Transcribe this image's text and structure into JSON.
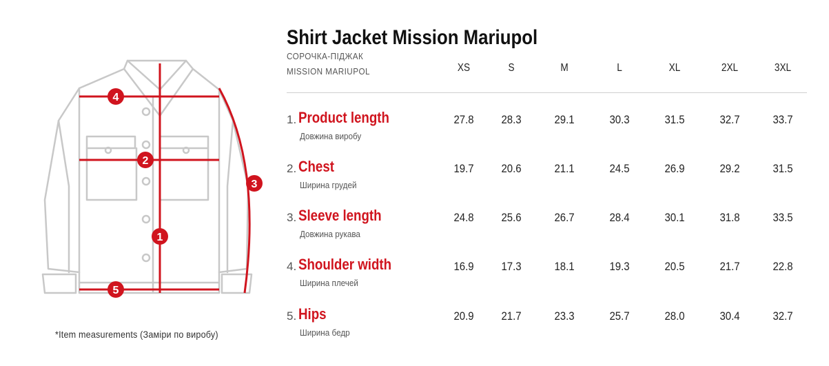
{
  "title": "Shirt Jacket Mission Mariupol",
  "subtitle_line1": "СОРОЧКА-ПІДЖАК",
  "subtitle_line2": "MISSION MARIUPOL",
  "footnote": "*Item measurements (Заміри по виробу)",
  "colors": {
    "accent": "#d0141e",
    "outline": "#c8c8c8"
  },
  "sizes": [
    "XS",
    "S",
    "M",
    "L",
    "XL",
    "2XL",
    "3XL"
  ],
  "rows": [
    {
      "num": "1.",
      "name": "Product length",
      "uk": "Довжина виробу",
      "values": [
        "27.8",
        "28.3",
        "29.1",
        "30.3",
        "31.5",
        "32.7",
        "33.7"
      ]
    },
    {
      "num": "2.",
      "name": "Chest",
      "uk": "Ширина грудей",
      "values": [
        "19.7",
        "20.6",
        "21.1",
        "24.5",
        "26.9",
        "29.2",
        "31.5"
      ]
    },
    {
      "num": "3.",
      "name": "Sleeve length",
      "uk": "Довжина рукава",
      "values": [
        "24.8",
        "25.6",
        "26.7",
        "28.4",
        "30.1",
        "31.8",
        "33.5"
      ]
    },
    {
      "num": "4.",
      "name": "Shoulder width",
      "uk": "Ширина плечей",
      "values": [
        "16.9",
        "17.3",
        "18.1",
        "19.3",
        "20.5",
        "21.7",
        "22.8"
      ]
    },
    {
      "num": "5.",
      "name": "Hips",
      "uk": "Ширина бедр",
      "values": [
        "20.9",
        "21.7",
        "23.3",
        "25.7",
        "28.0",
        "30.4",
        "32.7"
      ]
    }
  ],
  "markers": [
    "1",
    "2",
    "3",
    "4",
    "5"
  ]
}
